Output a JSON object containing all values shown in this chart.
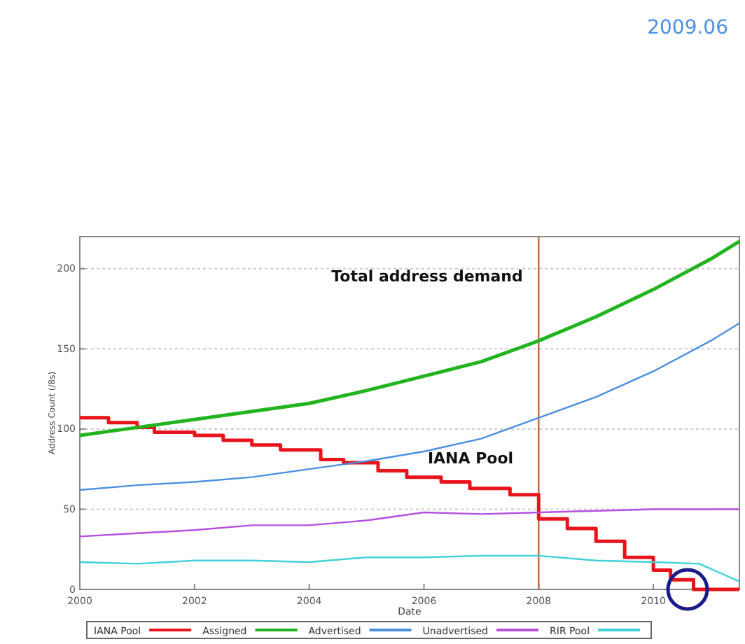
{
  "chart_data": {
    "type": "line",
    "xlabel": "Date",
    "ylabel": "Address Count (/8s)",
    "xlim": [
      2000,
      2011.5
    ],
    "xticks": [
      2000,
      2002,
      2004,
      2006,
      2008,
      2010
    ],
    "ylim": [
      0,
      220
    ],
    "yticks": [
      0,
      50,
      100,
      150,
      200
    ],
    "grid": "y",
    "legend": "bottom",
    "marker": "none",
    "series": [
      {
        "name": "IANA Pool",
        "type": "step",
        "color": "#e8141b",
        "x": [
          2000,
          2000.5,
          2001,
          2001.3,
          2002,
          2002.5,
          2003,
          2003.5,
          2004.2,
          2004.6,
          2005.2,
          2005.7,
          2006.3,
          2006.8,
          2007.5,
          2008,
          2008.5,
          2009,
          2009.5,
          2010,
          2010.3,
          2010.7,
          2011.5
        ],
        "values": [
          107,
          104,
          101,
          98,
          96,
          93,
          90,
          87,
          81,
          79,
          74,
          70,
          67,
          63,
          59,
          44,
          38,
          30,
          20,
          12,
          6,
          0,
          0
        ]
      },
      {
        "name": "Assigned",
        "color": "#22b41e",
        "x": [
          2000,
          2001,
          2002,
          2003,
          2004,
          2005,
          2006,
          2007,
          2008,
          2009,
          2010,
          2011,
          2011.5
        ],
        "values": [
          96,
          101,
          106,
          111,
          116,
          124,
          133,
          142,
          155,
          170,
          187,
          206,
          217
        ]
      },
      {
        "name": "Advertised",
        "color": "#4a8fe0",
        "x": [
          2000,
          2001,
          2002,
          2003,
          2004,
          2005,
          2006,
          2007,
          2008,
          2009,
          2010,
          2011,
          2011.5
        ],
        "values": [
          62,
          65,
          67,
          70,
          75,
          80,
          86,
          94,
          107,
          120,
          136,
          155,
          166
        ]
      },
      {
        "name": "Unadvertised",
        "color": "#b44fe0",
        "x": [
          2000,
          2001,
          2002,
          2003,
          2004,
          2005,
          2006,
          2007,
          2008,
          2009,
          2010,
          2011.5
        ],
        "values": [
          33,
          35,
          37,
          40,
          40,
          43,
          48,
          47,
          48,
          49,
          50,
          50
        ]
      },
      {
        "name": "RIR Pool",
        "color": "#40d0d8",
        "x": [
          2000,
          2001,
          2002,
          2003,
          2004,
          2005,
          2006,
          2007,
          2008,
          2009,
          2010,
          2010.8,
          2011.5
        ],
        "values": [
          17,
          16,
          18,
          18,
          17,
          20,
          20,
          21,
          21,
          18,
          17,
          16,
          5
        ]
      }
    ],
    "ref_lines": [
      {
        "axis": "x",
        "value": 2008,
        "color": "#b86a3a"
      }
    ],
    "annotations": [
      "Total address demand",
      "IANA Pool",
      "2009.06"
    ]
  }
}
